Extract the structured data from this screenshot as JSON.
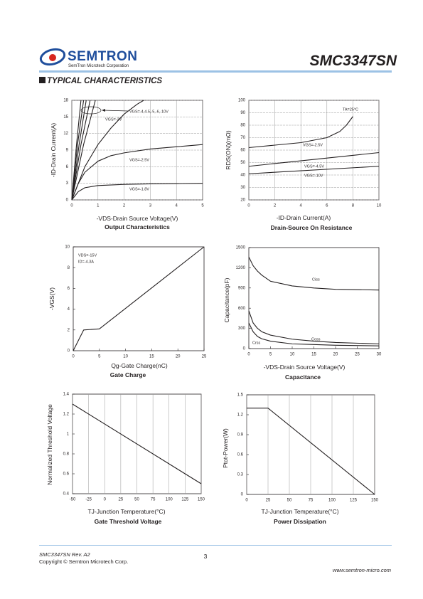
{
  "header": {
    "logo_text": "SEMTRON",
    "logo_tagline": "SemTron Microtech Corporation",
    "part_number": "SMC3347SN",
    "section_title": "TYPICAL CHARACTERISTICS"
  },
  "chart_data": [
    {
      "type": "line",
      "title": "Output Characteristics",
      "x_label": "-VDS-Drain Source Voltage(V)",
      "y_label": "-ID-Drain Current(A)",
      "xlim": [
        0,
        5
      ],
      "ylim": [
        0,
        18
      ],
      "xticks": [
        0,
        1,
        2,
        3,
        4,
        5
      ],
      "yticks": [
        0,
        3,
        6,
        9,
        12,
        15,
        18
      ],
      "grid": "both",
      "annotations": [
        "VGS=-4,4.5,-5,-6,-10V",
        "VGS=-3V",
        "VGS=-2.5V",
        "VGS=-1.8V"
      ],
      "series": [
        {
          "color": "#231f20",
          "x": [
            0,
            0.25,
            0.5,
            1,
            2,
            3,
            4,
            5
          ],
          "values": [
            0,
            1.5,
            2.2,
            2.6,
            2.8,
            2.9,
            2.95,
            3.0
          ]
        },
        {
          "color": "#231f20",
          "x": [
            0,
            0.25,
            0.5,
            1,
            1.5,
            2,
            3,
            4,
            5
          ],
          "values": [
            0,
            3,
            5,
            7,
            8,
            8.5,
            9.2,
            9.6,
            10
          ]
        },
        {
          "color": "#231f20",
          "x": [
            0,
            0.5,
            1,
            1.5,
            2,
            2.5,
            2.75
          ],
          "values": [
            0,
            6,
            10,
            13,
            15.5,
            17.3,
            18
          ]
        },
        {
          "color": "#231f20",
          "x": [
            0,
            0.45,
            0.9
          ],
          "values": [
            0,
            10,
            18
          ]
        },
        {
          "color": "#231f20",
          "x": [
            0,
            0.35,
            0.7
          ],
          "values": [
            0,
            10,
            18
          ]
        },
        {
          "color": "#231f20",
          "x": [
            0,
            0.28,
            0.55
          ],
          "values": [
            0,
            10,
            18
          ]
        },
        {
          "color": "#231f20",
          "x": [
            0,
            0.22,
            0.45
          ],
          "values": [
            0,
            10,
            18
          ]
        },
        {
          "color": "#231f20",
          "x": [
            0,
            0.18,
            0.35
          ],
          "values": [
            0,
            10,
            18
          ]
        }
      ]
    },
    {
      "type": "line",
      "title": "Drain-Source On Resistance",
      "x_label": "-ID-Drain Current(A)",
      "y_label": "RDS(ON)(mΩ)",
      "xlim": [
        0,
        10
      ],
      "ylim": [
        20,
        100
      ],
      "xticks": [
        0,
        2,
        4,
        6,
        8,
        10
      ],
      "yticks": [
        20,
        30,
        40,
        50,
        60,
        70,
        80,
        90,
        100
      ],
      "grid": "both",
      "annotations": [
        "TA=25°C",
        "VGS=-2.5V",
        "VGS=-4.5V",
        "VGS=-10V"
      ],
      "series": [
        {
          "color": "#231f20",
          "x": [
            0,
            2,
            4,
            5,
            6,
            7,
            7.5,
            8
          ],
          "values": [
            62,
            64,
            66,
            68,
            70,
            75,
            80,
            87
          ]
        },
        {
          "color": "#231f20",
          "x": [
            0,
            10
          ],
          "values": [
            47,
            58
          ]
        },
        {
          "color": "#231f20",
          "x": [
            0,
            10
          ],
          "values": [
            41,
            47
          ]
        }
      ]
    },
    {
      "type": "line",
      "title": "Gate Charge",
      "x_label": "Qg-Gate Charge(nC)",
      "y_label": "-VGS(V)",
      "xlim": [
        0,
        25
      ],
      "ylim": [
        0,
        10
      ],
      "xticks": [
        0,
        5,
        10,
        15,
        20,
        25
      ],
      "yticks": [
        0,
        2,
        4,
        6,
        8,
        10
      ],
      "grid": false,
      "annotations": [
        "VDS=-15V",
        "ID=-4.3A"
      ],
      "series": [
        {
          "color": "#231f20",
          "x": [
            0,
            2,
            5,
            25
          ],
          "values": [
            0,
            2,
            2.1,
            10
          ]
        }
      ]
    },
    {
      "type": "line",
      "title": "Capacitance",
      "x_label": "-VDS-Drain Source Voltage(V)",
      "y_label": "Capacitance(pF)",
      "xlim": [
        0,
        30
      ],
      "ylim": [
        0,
        1500
      ],
      "xticks": [
        0,
        5,
        10,
        15,
        20,
        25,
        30
      ],
      "yticks": [
        0,
        300,
        600,
        900,
        1200,
        1500
      ],
      "grid": false,
      "annotations": [
        "Ciss",
        "Coss",
        "Crss"
      ],
      "series": [
        {
          "color": "#231f20",
          "x": [
            0,
            1,
            2,
            3,
            5,
            10,
            15,
            20,
            30
          ],
          "values": [
            1360,
            1230,
            1150,
            1090,
            1000,
            930,
            900,
            880,
            870
          ]
        },
        {
          "color": "#231f20",
          "x": [
            0,
            1,
            2,
            3,
            5,
            10,
            15,
            20,
            30
          ],
          "values": [
            560,
            380,
            300,
            250,
            200,
            140,
            110,
            90,
            70
          ]
        },
        {
          "color": "#231f20",
          "x": [
            0,
            1,
            2,
            3,
            5,
            10,
            15,
            20,
            30
          ],
          "values": [
            380,
            250,
            180,
            145,
            110,
            70,
            60,
            50,
            40
          ]
        }
      ]
    },
    {
      "type": "line",
      "title": "Gate Threshold Voltage",
      "x_label": "TJ-Junction Temperature(°C)",
      "y_label": "Normalized Threshold Voltage",
      "xlim": [
        -50,
        150
      ],
      "ylim": [
        0.4,
        1.4
      ],
      "xticks": [
        -50,
        -25,
        0,
        25,
        50,
        75,
        100,
        125,
        150
      ],
      "yticks": [
        0.4,
        0.6,
        0.8,
        1,
        1.2,
        1.4
      ],
      "grid": "x",
      "series": [
        {
          "color": "#231f20",
          "x": [
            -50,
            150
          ],
          "values": [
            1.3,
            0.5
          ]
        }
      ]
    },
    {
      "type": "line",
      "title": "Power Dissipation",
      "x_label": "TJ-Junction Temperature(°C)",
      "y_label": "Ptot-Power(W)",
      "xlim": [
        0,
        150
      ],
      "ylim": [
        0,
        1.5
      ],
      "xticks": [
        0,
        25,
        50,
        75,
        100,
        125,
        150
      ],
      "yticks": [
        0,
        0.3,
        0.6,
        0.9,
        1.2,
        1.5
      ],
      "grid": "x",
      "series": [
        {
          "color": "#231f20",
          "x": [
            0,
            25,
            150
          ],
          "values": [
            1.3,
            1.3,
            0
          ]
        }
      ]
    }
  ],
  "footer": {
    "revision": "SMC3347SN Rev. A2",
    "copyright": "Copyright © Semtron Microtech Corp.",
    "page": "3",
    "website": "www.semtron-micro.com"
  }
}
